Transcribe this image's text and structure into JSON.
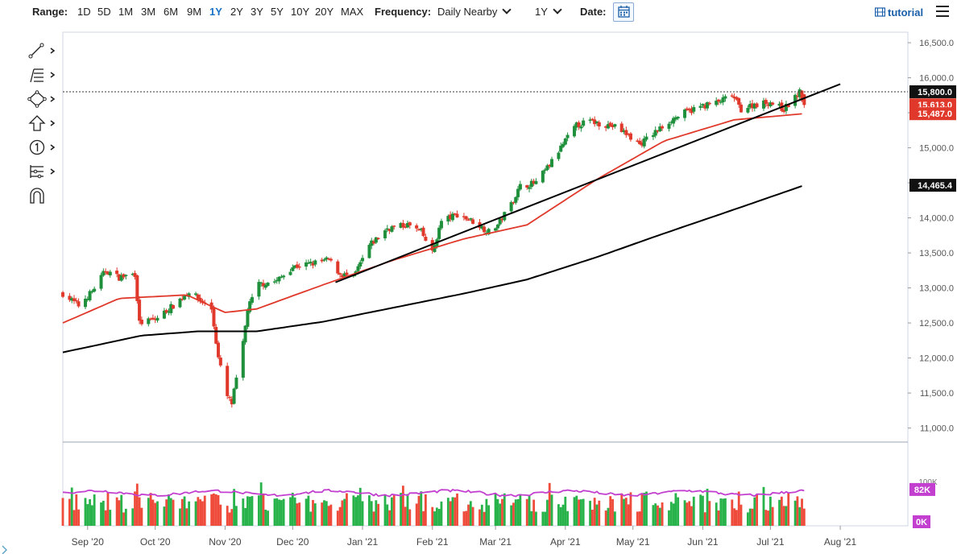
{
  "toolbar": {
    "range_label": "Range:",
    "ranges": [
      "1D",
      "5D",
      "1M",
      "3M",
      "6M",
      "9M",
      "1Y",
      "2Y",
      "3Y",
      "5Y",
      "10Y",
      "20Y",
      "MAX"
    ],
    "active_range": "1Y",
    "frequency_label": "Frequency:",
    "frequency_value": "Daily Nearby",
    "period_value": "1Y",
    "date_label": "Date:",
    "tutorial_label": "tutorial"
  },
  "tools": [
    "line-tool-icon",
    "fibonacci-tool-icon",
    "shape-tool-icon",
    "arrow-tool-icon",
    "annotation-tool-icon",
    "measure-tool-icon",
    "magnet-icon"
  ],
  "colors": {
    "up_candle": "#1e8f3a",
    "down_candle": "#e0392b",
    "ma50": "#e0392b",
    "ma200": "#000000",
    "volume_up": "#27b24a",
    "volume_down": "#ee4b3b",
    "volume_avg": "#c23fd0"
  },
  "chart_data": {
    "type": "candlestick",
    "price_axis": {
      "ylim": [
        10800,
        16650
      ],
      "ticks": [
        "16,500.0",
        "16,000.0",
        "15,500.0",
        "15,000.0",
        "14,500.0",
        "14,000.0",
        "13,500.0",
        "13,000.0",
        "12,500.0",
        "12,000.0",
        "11,500.0",
        "11,000.0"
      ],
      "tick_values": [
        16500,
        16000,
        15500,
        15000,
        14500,
        14000,
        13500,
        13000,
        12500,
        12000,
        11500,
        11000
      ]
    },
    "x_axis": {
      "ticks": [
        "Sep '20",
        "Oct '20",
        "Nov '20",
        "Dec '20",
        "Jan '21",
        "Feb '21",
        "Mar '21",
        "Apr '21",
        "May '21",
        "Jun '21",
        "Jul '21",
        "Aug '21"
      ],
      "start": "2020-08-21",
      "end": "2021-08-31",
      "tick_dates": [
        "2020-09-01",
        "2020-10-01",
        "2020-11-01",
        "2020-12-01",
        "2021-01-01",
        "2021-02-01",
        "2021-03-01",
        "2021-04-01",
        "2021-05-01",
        "2021-06-01",
        "2021-07-01",
        "2021-08-01"
      ]
    },
    "close_anchors": [
      [
        "2020-08-21",
        12920
      ],
      [
        "2020-08-28",
        12750
      ],
      [
        "2020-09-03",
        12950
      ],
      [
        "2020-09-09",
        13250
      ],
      [
        "2020-09-15",
        13150
      ],
      [
        "2020-09-22",
        13200
      ],
      [
        "2020-09-24",
        12500
      ],
      [
        "2020-10-01",
        12550
      ],
      [
        "2020-10-09",
        12750
      ],
      [
        "2020-10-16",
        12950
      ],
      [
        "2020-10-20",
        12850
      ],
      [
        "2020-10-26",
        12700
      ],
      [
        "2020-10-29",
        12000
      ],
      [
        "2020-11-02",
        11450
      ],
      [
        "2020-11-04",
        11350
      ],
      [
        "2020-11-09",
        12200
      ],
      [
        "2020-11-11",
        12700
      ],
      [
        "2020-11-16",
        13050
      ],
      [
        "2020-11-24",
        13100
      ],
      [
        "2020-12-01",
        13300
      ],
      [
        "2020-12-10",
        13350
      ],
      [
        "2020-12-17",
        13400
      ],
      [
        "2020-12-22",
        13200
      ],
      [
        "2020-12-28",
        13150
      ],
      [
        "2021-01-04",
        13600
      ],
      [
        "2021-01-12",
        13850
      ],
      [
        "2021-01-21",
        13900
      ],
      [
        "2021-01-27",
        13800
      ],
      [
        "2021-02-01",
        13500
      ],
      [
        "2021-02-05",
        13950
      ],
      [
        "2021-02-12",
        14050
      ],
      [
        "2021-02-19",
        13950
      ],
      [
        "2021-02-26",
        13800
      ],
      [
        "2021-03-02",
        13900
      ],
      [
        "2021-03-08",
        14200
      ],
      [
        "2021-03-12",
        14450
      ],
      [
        "2021-03-19",
        14500
      ],
      [
        "2021-03-26",
        14800
      ],
      [
        "2021-04-01",
        15100
      ],
      [
        "2021-04-06",
        15320
      ],
      [
        "2021-04-12",
        15380
      ],
      [
        "2021-04-19",
        15330
      ],
      [
        "2021-04-23",
        15300
      ],
      [
        "2021-04-28",
        15200
      ],
      [
        "2021-05-04",
        15050
      ],
      [
        "2021-05-10",
        15200
      ],
      [
        "2021-05-18",
        15400
      ],
      [
        "2021-05-24",
        15500
      ],
      [
        "2021-06-01",
        15600
      ],
      [
        "2021-06-08",
        15650
      ],
      [
        "2021-06-14",
        15750
      ],
      [
        "2021-06-18",
        15550
      ],
      [
        "2021-06-24",
        15620
      ],
      [
        "2021-07-01",
        15650
      ],
      [
        "2021-07-07",
        15550
      ],
      [
        "2021-07-12",
        15720
      ],
      [
        "2021-07-14",
        15790
      ],
      [
        "2021-07-16",
        15613
      ]
    ],
    "ma50": {
      "name": "",
      "last": 15487.0,
      "anchors": [
        [
          "2020-08-21",
          12500
        ],
        [
          "2020-09-15",
          12850
        ],
        [
          "2020-10-15",
          12900
        ],
        [
          "2020-11-01",
          12650
        ],
        [
          "2020-11-15",
          12700
        ],
        [
          "2020-12-15",
          13050
        ],
        [
          "2021-01-15",
          13400
        ],
        [
          "2021-02-15",
          13700
        ],
        [
          "2021-03-15",
          13900
        ],
        [
          "2021-04-15",
          14550
        ],
        [
          "2021-05-15",
          15100
        ],
        [
          "2021-06-15",
          15400
        ],
        [
          "2021-07-16",
          15487
        ]
      ]
    },
    "ma200": {
      "name": "",
      "last": 14465.4,
      "anchors": [
        [
          "2020-08-21",
          12080
        ],
        [
          "2020-09-25",
          12320
        ],
        [
          "2020-10-20",
          12380
        ],
        [
          "2020-11-15",
          12380
        ],
        [
          "2020-12-15",
          12520
        ],
        [
          "2021-01-15",
          12720
        ],
        [
          "2021-02-15",
          12920
        ],
        [
          "2021-03-15",
          13120
        ],
        [
          "2021-04-15",
          13440
        ],
        [
          "2021-05-15",
          13780
        ],
        [
          "2021-06-15",
          14120
        ],
        [
          "2021-07-16",
          14465
        ]
      ]
    },
    "trendline": {
      "from": [
        "2020-12-20",
        13080
      ],
      "to": [
        "2021-08-01",
        15910
      ]
    },
    "price_labels": [
      {
        "text": "15,800.0",
        "value": 15800,
        "color": "#111111"
      },
      {
        "text": "15,613.0",
        "value": 15613,
        "color": "#e0392b"
      },
      {
        "text": "15,487.0",
        "value": 15487,
        "color": "#e0392b"
      },
      {
        "text": "14,465.4",
        "value": 14465.4,
        "color": "#111111"
      }
    ],
    "reference_line": 15800,
    "volume": {
      "ymax": 100000,
      "ticks": [
        "100K",
        "0K"
      ],
      "tick_values": [
        100000,
        0
      ],
      "avg_label": "82K",
      "avg_value": 82000
    }
  }
}
